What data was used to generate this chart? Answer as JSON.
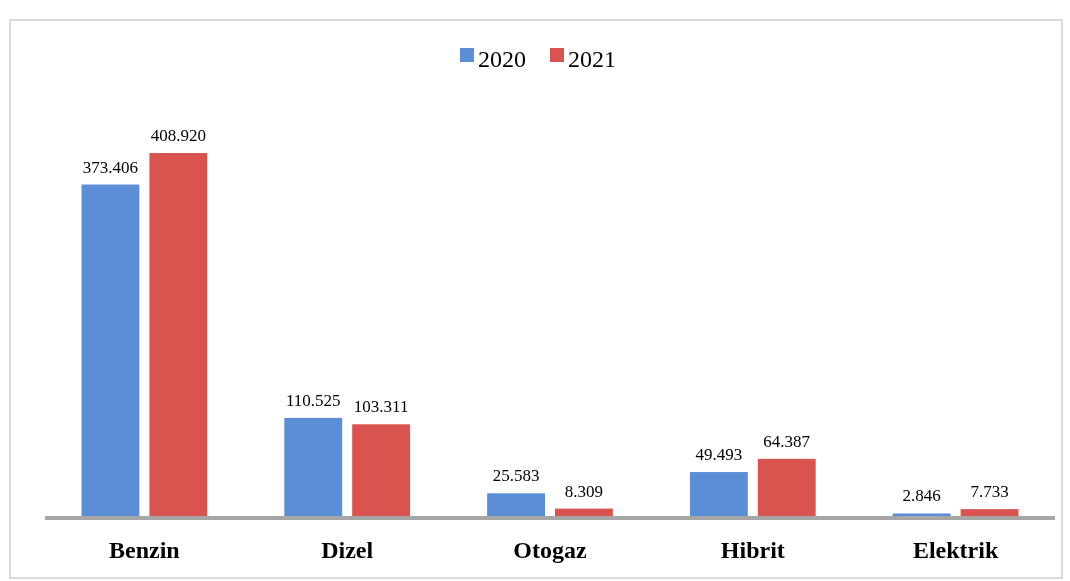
{
  "chart_data": {
    "type": "bar",
    "categories": [
      "Benzin",
      "Dizel",
      "Otogaz",
      "Hibrit",
      "Elektrik"
    ],
    "series": [
      {
        "name": "2020",
        "color": "#5b8ed6",
        "values": [
          373406,
          110525,
          25583,
          49493,
          2846
        ],
        "value_labels": [
          "373.406",
          "110.525",
          "25.583",
          "49.493",
          "2.846"
        ]
      },
      {
        "name": "2021",
        "color": "#d9534f",
        "values": [
          408920,
          103311,
          8309,
          64387,
          7733
        ],
        "value_labels": [
          "408.920",
          "103.311",
          "8.309",
          "64.387",
          "7.733"
        ]
      }
    ],
    "legend": "top",
    "grid": false
  }
}
